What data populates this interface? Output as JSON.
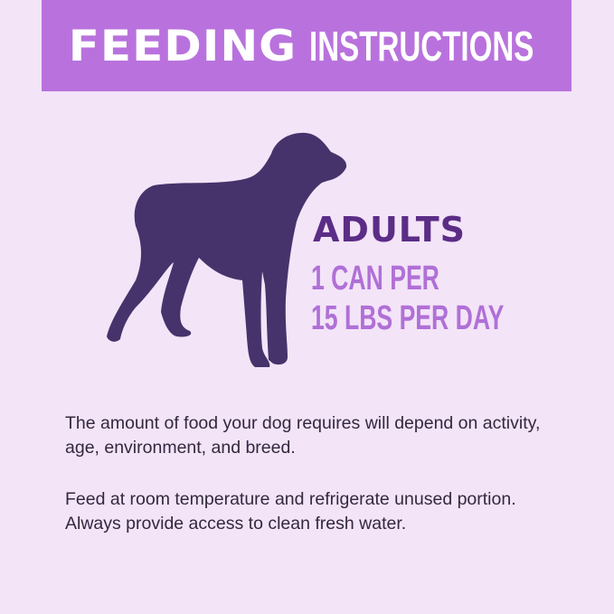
{
  "header": {
    "title_bold": "FEEDING",
    "title_light": "INSTRUCTIONS"
  },
  "colors": {
    "background": "#f3e4f8",
    "banner": "#b972dd",
    "dog": "#46336b",
    "adults": "#5b2d86",
    "amount": "#b070d6"
  },
  "icon": "dog-silhouette-icon",
  "feeding": {
    "group": "ADULTS",
    "line1": "1 CAN PER",
    "line2": "15 LBS PER DAY"
  },
  "notes": [
    "The amount of food your dog requires will depend on activity, age, environment, and breed.",
    "Feed at room temperature and refrigerate unused portion. Always provide access to clean fresh water."
  ]
}
